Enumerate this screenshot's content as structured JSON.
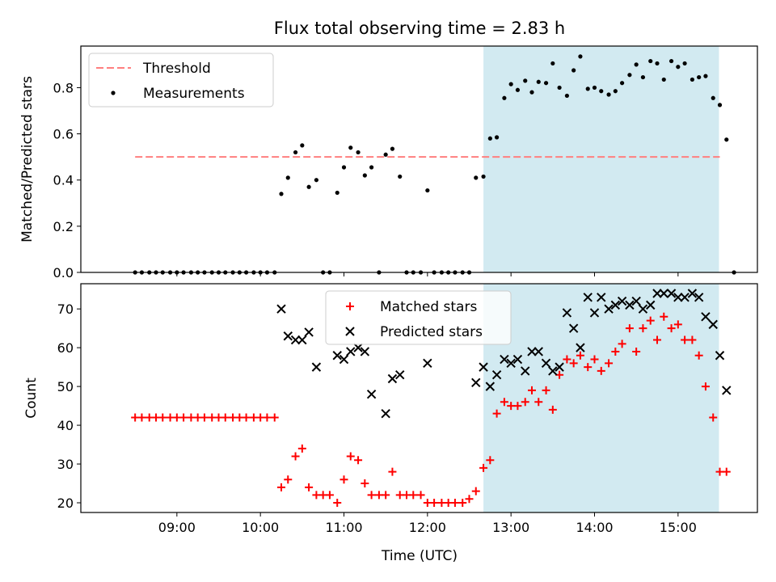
{
  "chart_data": {
    "type": "scatter",
    "title": "Flux total observing time = 2.83 h",
    "xlabel": "Time (UTC)",
    "x_ticks": [
      "09:00",
      "10:00",
      "11:00",
      "12:00",
      "13:00",
      "14:00",
      "15:00"
    ],
    "x_tick_hours": [
      9,
      10,
      11,
      12,
      13,
      14,
      15
    ],
    "xlim_hours": [
      7.85,
      15.95
    ],
    "highlight_span_hours": [
      12.67,
      15.49
    ],
    "highlight_color": "#add8e6",
    "panels": [
      {
        "ylabel": "Matched/Predicted stars",
        "ylim": [
          0,
          0.98
        ],
        "yticks": [
          0.0,
          0.2,
          0.4,
          0.6,
          0.8
        ],
        "ytick_labels": [
          "0.0",
          "0.2",
          "0.4",
          "0.6",
          "0.8"
        ],
        "legend_position": "upper-left",
        "series": [
          {
            "name": "Threshold",
            "kind": "dashed-line",
            "color": "#ff7f7f",
            "x": [
              8.5,
              15.5
            ],
            "y": [
              0.5,
              0.5
            ]
          },
          {
            "name": "Measurements",
            "kind": "dot",
            "color": "#000000",
            "points": [
              [
                8.5,
                0
              ],
              [
                8.58,
                0
              ],
              [
                8.67,
                0
              ],
              [
                8.75,
                0
              ],
              [
                8.83,
                0
              ],
              [
                8.92,
                0
              ],
              [
                9.0,
                0
              ],
              [
                9.08,
                0
              ],
              [
                9.17,
                0
              ],
              [
                9.25,
                0
              ],
              [
                9.33,
                0
              ],
              [
                9.42,
                0
              ],
              [
                9.5,
                0
              ],
              [
                9.58,
                0
              ],
              [
                9.67,
                0
              ],
              [
                9.75,
                0
              ],
              [
                9.83,
                0
              ],
              [
                9.92,
                0
              ],
              [
                10.0,
                0
              ],
              [
                10.08,
                0
              ],
              [
                10.17,
                0
              ],
              [
                10.25,
                0.34
              ],
              [
                10.33,
                0.41
              ],
              [
                10.42,
                0.52
              ],
              [
                10.5,
                0.55
              ],
              [
                10.58,
                0.37
              ],
              [
                10.67,
                0.4
              ],
              [
                10.75,
                0
              ],
              [
                10.83,
                0
              ],
              [
                10.92,
                0.345
              ],
              [
                11.0,
                0.455
              ],
              [
                11.08,
                0.54
              ],
              [
                11.17,
                0.52
              ],
              [
                11.25,
                0.42
              ],
              [
                11.33,
                0.455
              ],
              [
                11.42,
                0
              ],
              [
                11.5,
                0.51
              ],
              [
                11.58,
                0.535
              ],
              [
                11.67,
                0.415
              ],
              [
                11.75,
                0
              ],
              [
                11.83,
                0
              ],
              [
                11.92,
                0
              ],
              [
                12.0,
                0.355
              ],
              [
                12.08,
                0
              ],
              [
                12.17,
                0
              ],
              [
                12.25,
                0
              ],
              [
                12.33,
                0
              ],
              [
                12.42,
                0
              ],
              [
                12.5,
                0
              ],
              [
                12.58,
                0.41
              ],
              [
                12.67,
                0.415
              ],
              [
                12.75,
                0.58
              ],
              [
                12.83,
                0.585
              ],
              [
                12.92,
                0.755
              ],
              [
                13.0,
                0.815
              ],
              [
                13.08,
                0.79
              ],
              [
                13.17,
                0.83
              ],
              [
                13.25,
                0.78
              ],
              [
                13.33,
                0.825
              ],
              [
                13.42,
                0.82
              ],
              [
                13.5,
                0.905
              ],
              [
                13.58,
                0.8
              ],
              [
                13.67,
                0.765
              ],
              [
                13.75,
                0.875
              ],
              [
                13.83,
                0.935
              ],
              [
                13.92,
                0.795
              ],
              [
                14.0,
                0.8
              ],
              [
                14.08,
                0.785
              ],
              [
                14.17,
                0.77
              ],
              [
                14.25,
                0.785
              ],
              [
                14.33,
                0.82
              ],
              [
                14.42,
                0.855
              ],
              [
                14.5,
                0.9
              ],
              [
                14.58,
                0.845
              ],
              [
                14.67,
                0.915
              ],
              [
                14.75,
                0.905
              ],
              [
                14.83,
                0.835
              ],
              [
                14.92,
                0.915
              ],
              [
                15.0,
                0.89
              ],
              [
                15.08,
                0.905
              ],
              [
                15.17,
                0.835
              ],
              [
                15.25,
                0.845
              ],
              [
                15.33,
                0.85
              ],
              [
                15.42,
                0.755
              ],
              [
                15.5,
                0.725
              ],
              [
                15.58,
                0.575
              ],
              [
                15.67,
                0
              ]
            ]
          }
        ]
      },
      {
        "ylabel": "Count",
        "ylim": [
          17.5,
          76.5
        ],
        "yticks": [
          20,
          30,
          40,
          50,
          60,
          70
        ],
        "ytick_labels": [
          "20",
          "30",
          "40",
          "50",
          "60",
          "70"
        ],
        "legend_position": "upper-center",
        "series": [
          {
            "name": "Matched stars",
            "kind": "plus",
            "color": "#ff0000",
            "points": [
              [
                8.5,
                42
              ],
              [
                8.58,
                42
              ],
              [
                8.67,
                42
              ],
              [
                8.75,
                42
              ],
              [
                8.83,
                42
              ],
              [
                8.92,
                42
              ],
              [
                9.0,
                42
              ],
              [
                9.08,
                42
              ],
              [
                9.17,
                42
              ],
              [
                9.25,
                42
              ],
              [
                9.33,
                42
              ],
              [
                9.42,
                42
              ],
              [
                9.5,
                42
              ],
              [
                9.58,
                42
              ],
              [
                9.67,
                42
              ],
              [
                9.75,
                42
              ],
              [
                9.83,
                42
              ],
              [
                9.92,
                42
              ],
              [
                10.0,
                42
              ],
              [
                10.08,
                42
              ],
              [
                10.17,
                42
              ],
              [
                10.25,
                24
              ],
              [
                10.33,
                26
              ],
              [
                10.42,
                32
              ],
              [
                10.5,
                34
              ],
              [
                10.58,
                24
              ],
              [
                10.67,
                22
              ],
              [
                10.75,
                22
              ],
              [
                10.83,
                22
              ],
              [
                10.92,
                20
              ],
              [
                11.0,
                26
              ],
              [
                11.08,
                32
              ],
              [
                11.17,
                31
              ],
              [
                11.25,
                25
              ],
              [
                11.33,
                22
              ],
              [
                11.42,
                22
              ],
              [
                11.5,
                22
              ],
              [
                11.58,
                28
              ],
              [
                11.67,
                22
              ],
              [
                11.75,
                22
              ],
              [
                11.83,
                22
              ],
              [
                11.92,
                22
              ],
              [
                12.0,
                20
              ],
              [
                12.08,
                20
              ],
              [
                12.17,
                20
              ],
              [
                12.25,
                20
              ],
              [
                12.33,
                20
              ],
              [
                12.42,
                20
              ],
              [
                12.5,
                21
              ],
              [
                12.58,
                23
              ],
              [
                12.67,
                29
              ],
              [
                12.75,
                31
              ],
              [
                12.83,
                43
              ],
              [
                12.92,
                46
              ],
              [
                13.0,
                45
              ],
              [
                13.08,
                45
              ],
              [
                13.17,
                46
              ],
              [
                13.25,
                49
              ],
              [
                13.33,
                46
              ],
              [
                13.42,
                49
              ],
              [
                13.5,
                44
              ],
              [
                13.58,
                53
              ],
              [
                13.67,
                57
              ],
              [
                13.75,
                56
              ],
              [
                13.83,
                58
              ],
              [
                13.92,
                55
              ],
              [
                14.0,
                57
              ],
              [
                14.08,
                54
              ],
              [
                14.17,
                56
              ],
              [
                14.25,
                59
              ],
              [
                14.33,
                61
              ],
              [
                14.42,
                65
              ],
              [
                14.5,
                59
              ],
              [
                14.58,
                65
              ],
              [
                14.67,
                67
              ],
              [
                14.75,
                62
              ],
              [
                14.83,
                68
              ],
              [
                14.92,
                65
              ],
              [
                15.0,
                66
              ],
              [
                15.08,
                62
              ],
              [
                15.17,
                62
              ],
              [
                15.25,
                58
              ],
              [
                15.33,
                50
              ],
              [
                15.42,
                42
              ],
              [
                15.5,
                28
              ],
              [
                15.58,
                28
              ]
            ]
          },
          {
            "name": "Predicted stars",
            "kind": "cross",
            "color": "#000000",
            "points": [
              [
                10.25,
                70
              ],
              [
                10.33,
                63
              ],
              [
                10.42,
                62
              ],
              [
                10.5,
                62
              ],
              [
                10.58,
                64
              ],
              [
                10.67,
                55
              ],
              [
                10.92,
                58
              ],
              [
                11.0,
                57
              ],
              [
                11.08,
                59
              ],
              [
                11.17,
                60
              ],
              [
                11.25,
                59
              ],
              [
                11.33,
                48
              ],
              [
                11.5,
                43
              ],
              [
                11.58,
                52
              ],
              [
                11.67,
                53
              ],
              [
                12.0,
                56
              ],
              [
                12.58,
                51
              ],
              [
                12.67,
                55
              ],
              [
                12.75,
                50
              ],
              [
                12.83,
                53
              ],
              [
                12.92,
                57
              ],
              [
                13.0,
                56
              ],
              [
                13.08,
                57
              ],
              [
                13.17,
                54
              ],
              [
                13.25,
                59
              ],
              [
                13.33,
                59
              ],
              [
                13.42,
                56
              ],
              [
                13.5,
                54
              ],
              [
                13.58,
                55
              ],
              [
                13.67,
                69
              ],
              [
                13.75,
                65
              ],
              [
                13.83,
                60
              ],
              [
                13.92,
                73
              ],
              [
                14.0,
                69
              ],
              [
                14.08,
                73
              ],
              [
                14.17,
                70
              ],
              [
                14.25,
                71
              ],
              [
                14.33,
                72
              ],
              [
                14.42,
                71
              ],
              [
                14.5,
                72
              ],
              [
                14.58,
                70
              ],
              [
                14.67,
                71
              ],
              [
                14.75,
                74
              ],
              [
                14.83,
                74
              ],
              [
                14.92,
                74
              ],
              [
                15.0,
                73
              ],
              [
                15.08,
                73
              ],
              [
                15.17,
                74
              ],
              [
                15.25,
                73
              ],
              [
                15.33,
                68
              ],
              [
                15.42,
                66
              ],
              [
                15.5,
                58
              ],
              [
                15.58,
                49
              ]
            ]
          }
        ]
      }
    ]
  }
}
